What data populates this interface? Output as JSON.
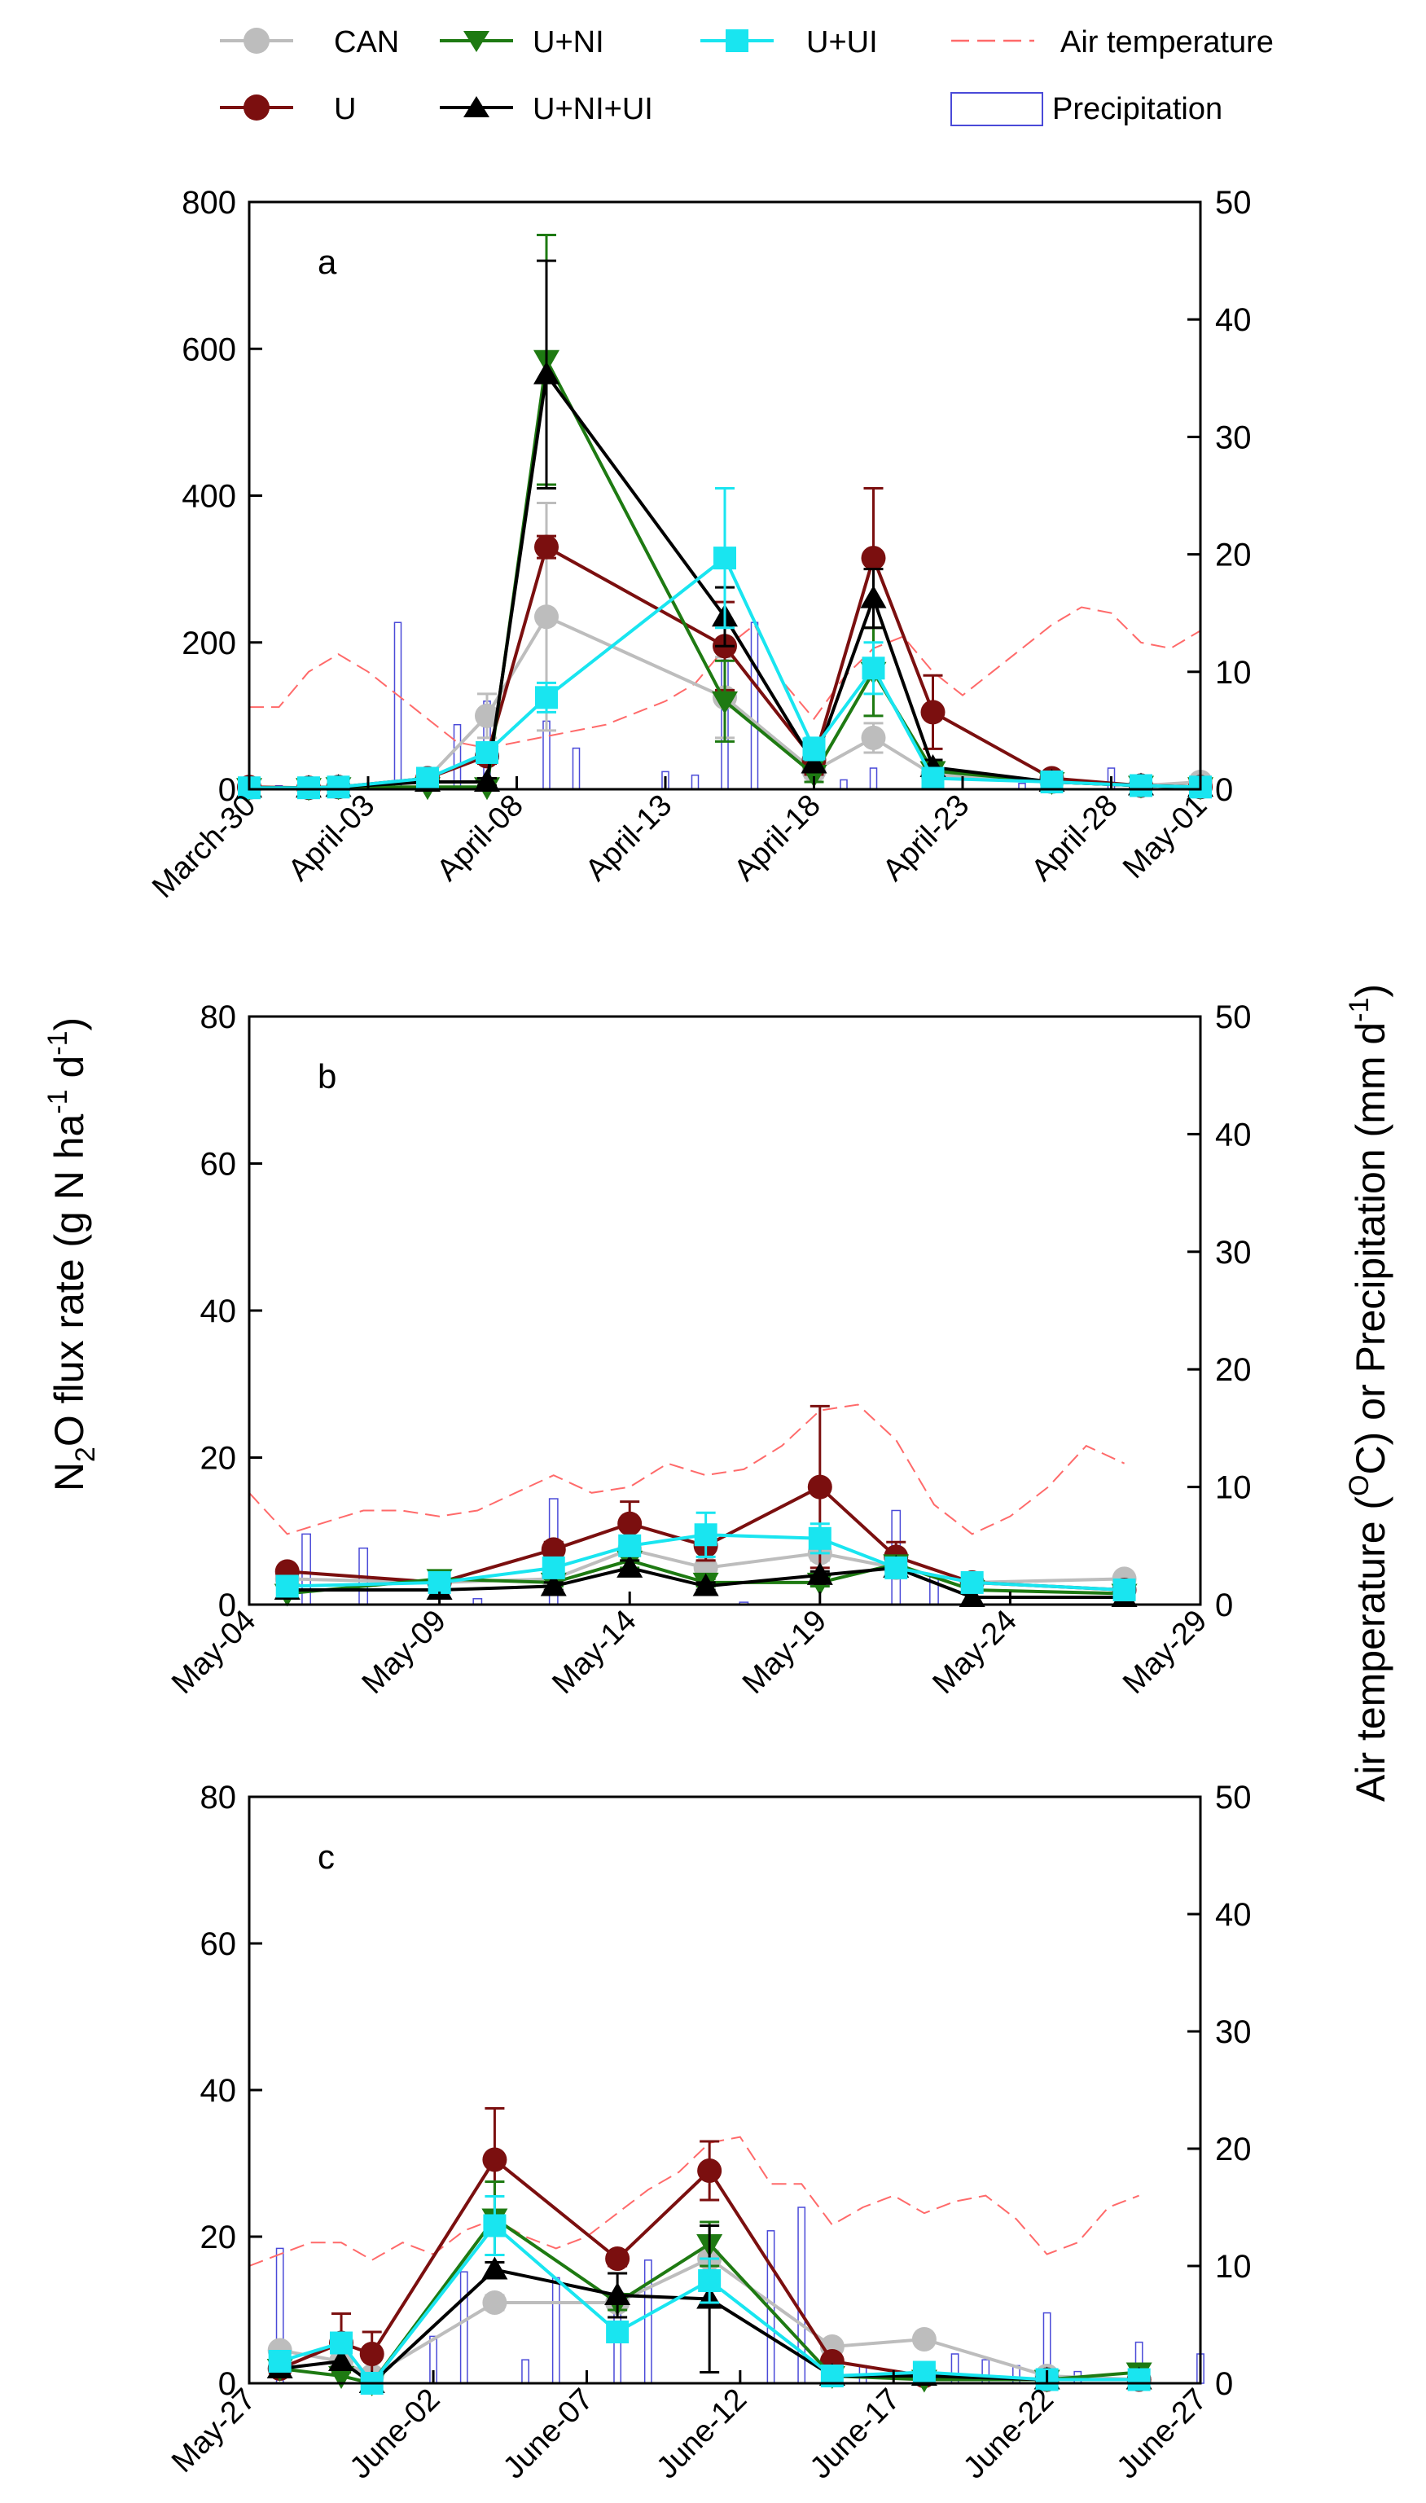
{
  "legend": {
    "entries": [
      {
        "key": "CAN",
        "label": "CAN"
      },
      {
        "key": "U",
        "label": "U"
      },
      {
        "key": "U+NI",
        "label": "U+NI"
      },
      {
        "key": "U+NI+UI",
        "label": "U+NI+UI"
      },
      {
        "key": "U+UI",
        "label": "U+UI"
      },
      {
        "key": "air",
        "label": "Air temperature"
      },
      {
        "key": "precip",
        "label": "Precipitation"
      }
    ]
  },
  "colors": {
    "CAN": "#bdbdbd",
    "U": "#7b0f0f",
    "U+NI": "#1e7a12",
    "U+NI+UI": "#000000",
    "U+UI": "#19e5f0",
    "air": "#ff6a6a",
    "precip": "#4a4ad8"
  },
  "axis_labels": {
    "left_prefix": "N",
    "left_sub": "2",
    "left_mid": "O flux rate (g N ha",
    "left_sup1": "-1",
    "left_mid2": " d",
    "left_sup2": "-1",
    "left_end": ")",
    "right_prefix": "Air temperature (",
    "right_sup": "O",
    "right_mid": "C) or Precipitation (mm d",
    "right_sup2": "-1",
    "right_end": ")"
  },
  "chart_data": [
    {
      "type": "line",
      "panel": "a",
      "title": "",
      "ylim": [
        0,
        800
      ],
      "yticks": [
        "0",
        "200",
        "400",
        "600",
        "800"
      ],
      "y2lim": [
        0,
        50
      ],
      "y2ticks": [
        "0",
        "10",
        "20",
        "30",
        "40",
        "50"
      ],
      "xlim": [
        0,
        32
      ],
      "xticks": [
        {
          "x": 0,
          "label": "March-30"
        },
        {
          "x": 4,
          "label": "April-03"
        },
        {
          "x": 9,
          "label": "April-08"
        },
        {
          "x": 14,
          "label": "April-13"
        },
        {
          "x": 19,
          "label": "April-18"
        },
        {
          "x": 24,
          "label": "April-23"
        },
        {
          "x": 29,
          "label": "April-28"
        },
        {
          "x": 32,
          "label": "May-01"
        }
      ],
      "x": [
        0,
        2,
        3,
        6,
        8,
        10,
        16,
        19,
        21,
        23,
        27,
        30,
        32
      ],
      "series": [
        {
          "name": "CAN",
          "values": [
            2,
            2,
            3,
            15,
            100,
            235,
            125,
            25,
            70,
            20,
            10,
            5,
            10
          ],
          "errors": [
            0,
            0,
            0,
            5,
            30,
            155,
            55,
            10,
            20,
            5,
            0,
            0,
            0
          ]
        },
        {
          "name": "U",
          "values": [
            3,
            2,
            3,
            15,
            45,
            330,
            195,
            40,
            315,
            105,
            15,
            5,
            3
          ],
          "errors": [
            0,
            0,
            0,
            5,
            10,
            15,
            60,
            20,
            95,
            50,
            5,
            0,
            0
          ]
        },
        {
          "name": "U+NI",
          "values": [
            2,
            2,
            3,
            3,
            3,
            585,
            120,
            20,
            160,
            25,
            10,
            5,
            3
          ],
          "errors": [
            0,
            0,
            0,
            0,
            0,
            170,
            55,
            10,
            60,
            10,
            0,
            0,
            0
          ]
        },
        {
          "name": "U+NI+UI",
          "values": [
            2,
            2,
            3,
            10,
            10,
            565,
            235,
            35,
            260,
            30,
            10,
            5,
            3
          ],
          "errors": [
            0,
            0,
            0,
            5,
            5,
            155,
            40,
            10,
            40,
            10,
            0,
            0,
            0
          ]
        },
        {
          "name": "U+UI",
          "values": [
            2,
            2,
            3,
            15,
            50,
            125,
            315,
            55,
            165,
            15,
            10,
            5,
            3
          ],
          "errors": [
            0,
            0,
            0,
            5,
            5,
            20,
            95,
            15,
            35,
            5,
            0,
            0,
            0
          ]
        }
      ],
      "air_temperature": {
        "x": [
          0,
          1,
          2,
          3,
          4,
          5,
          6,
          7,
          8,
          9,
          10,
          11,
          12,
          13,
          14,
          15,
          16,
          17,
          18,
          19,
          20,
          21,
          22,
          23,
          24,
          25,
          26,
          27,
          28,
          29,
          30,
          31,
          32
        ],
        "values": [
          7,
          7,
          10,
          11.5,
          10,
          8,
          6,
          4,
          3.5,
          4,
          4.5,
          5,
          5.5,
          6.5,
          7.5,
          9,
          12,
          14,
          9,
          6,
          9.5,
          12,
          13,
          10,
          8,
          10,
          12,
          14,
          15.5,
          15,
          12.5,
          12,
          13.5
        ]
      },
      "precipitation": {
        "x": [
          1,
          5,
          7,
          8,
          10,
          11,
          14,
          15,
          16,
          17,
          20,
          21,
          23,
          26,
          29
        ],
        "values": [
          0.3,
          14.2,
          5.5,
          7.5,
          5.8,
          3.5,
          1.5,
          1.2,
          11.0,
          14.2,
          0.8,
          1.8,
          0.3,
          0.5,
          1.8
        ]
      }
    },
    {
      "type": "line",
      "panel": "b",
      "title": "",
      "ylim": [
        0,
        80
      ],
      "yticks": [
        "0",
        "20",
        "40",
        "60",
        "80"
      ],
      "y2lim": [
        0,
        50
      ],
      "y2ticks": [
        "0",
        "10",
        "20",
        "30",
        "40",
        "50"
      ],
      "xlim": [
        0,
        25
      ],
      "xticks": [
        {
          "x": 0,
          "label": "May-04"
        },
        {
          "x": 5,
          "label": "May-09"
        },
        {
          "x": 10,
          "label": "May-14"
        },
        {
          "x": 15,
          "label": "May-19"
        },
        {
          "x": 20,
          "label": "May-24"
        },
        {
          "x": 25,
          "label": "May-29"
        }
      ],
      "x": [
        1,
        5,
        8,
        10,
        12,
        15,
        17,
        19,
        23
      ],
      "series": [
        {
          "name": "CAN",
          "values": [
            3.5,
            3,
            3.5,
            7.5,
            5,
            7,
            5,
            3,
            3.5
          ],
          "errors": [
            0,
            0,
            0.5,
            1.5,
            1,
            1,
            0.5,
            0.5,
            0
          ]
        },
        {
          "name": "U",
          "values": [
            4.5,
            3,
            7.5,
            11,
            8,
            16,
            6.5,
            3,
            2
          ],
          "errors": [
            0.5,
            0,
            1,
            3,
            2,
            11,
            2,
            0.5,
            0
          ]
        },
        {
          "name": "U+NI",
          "values": [
            1.5,
            3.5,
            3,
            6,
            3,
            3,
            5.5,
            2,
            1.5
          ],
          "errors": [
            0,
            0,
            0.5,
            1,
            0.5,
            0.5,
            0.5,
            0,
            0
          ]
        },
        {
          "name": "U+NI+UI",
          "values": [
            2,
            2,
            2.5,
            5,
            2.5,
            4,
            5,
            1,
            1
          ],
          "errors": [
            0,
            0,
            0.5,
            1,
            0.5,
            0.5,
            0.5,
            0,
            0
          ]
        },
        {
          "name": "U+UI",
          "values": [
            2.5,
            3,
            5,
            8,
            9.5,
            9,
            5,
            3,
            2
          ],
          "errors": [
            0.5,
            0,
            0.5,
            1,
            3,
            2,
            1,
            0.5,
            0
          ]
        }
      ],
      "air_temperature": {
        "x": [
          0,
          1,
          2,
          3,
          4,
          5,
          6,
          7,
          8,
          9,
          10,
          11,
          12,
          13,
          14,
          15,
          16,
          17,
          18,
          19,
          20,
          21,
          22,
          23
        ],
        "values": [
          9.5,
          6,
          7,
          8,
          8,
          7.5,
          8,
          9.5,
          11,
          9.5,
          10,
          12,
          11,
          11.5,
          13.5,
          16.5,
          17,
          14,
          8.5,
          6,
          7.5,
          10,
          13.5,
          12
        ]
      },
      "precipitation": {
        "x": [
          1.5,
          3,
          6,
          8,
          13,
          17,
          18
        ],
        "values": [
          6,
          4.8,
          0.5,
          9,
          0.2,
          8,
          2.5
        ]
      }
    },
    {
      "type": "line",
      "panel": "c",
      "title": "",
      "ylim": [
        0,
        80
      ],
      "yticks": [
        "0",
        "20",
        "40",
        "60",
        "80"
      ],
      "y2lim": [
        0,
        50
      ],
      "y2ticks": [
        "0",
        "10",
        "20",
        "30",
        "40",
        "50"
      ],
      "xlim": [
        0,
        31
      ],
      "xticks": [
        {
          "x": 0,
          "label": "May-27"
        },
        {
          "x": 6,
          "label": "June-02"
        },
        {
          "x": 11,
          "label": "June-07"
        },
        {
          "x": 16,
          "label": "June-12"
        },
        {
          "x": 21,
          "label": "June-17"
        },
        {
          "x": 26,
          "label": "June-22"
        },
        {
          "x": 31,
          "label": "June-27"
        }
      ],
      "x": [
        1,
        3,
        4,
        8,
        12,
        15,
        19,
        22,
        26,
        29
      ],
      "series": [
        {
          "name": "CAN",
          "values": [
            4.5,
            3,
            1,
            11,
            11,
            17,
            5,
            6,
            1,
            0.5
          ],
          "errors": [
            0.5,
            0,
            0,
            1,
            1,
            1,
            0.5,
            0.5,
            0,
            0
          ]
        },
        {
          "name": "U",
          "values": [
            2,
            5.5,
            4,
            30.5,
            17,
            29,
            3,
            1,
            0.5,
            0.5
          ],
          "errors": [
            0,
            4,
            3,
            7,
            1,
            4,
            0.5,
            0,
            0,
            0
          ]
        },
        {
          "name": "U+NI",
          "values": [
            2,
            1,
            0,
            22.5,
            11,
            19,
            1,
            0.5,
            0.5,
            1.5
          ],
          "errors": [
            0,
            0,
            0,
            5,
            1,
            3,
            0,
            0,
            0,
            0
          ]
        },
        {
          "name": "U+NI+UI",
          "values": [
            2,
            3,
            0,
            15.5,
            12,
            11.5,
            1,
            1,
            0.5,
            0.5
          ],
          "errors": [
            0,
            0,
            0,
            1,
            3,
            10,
            0,
            0,
            0,
            0
          ]
        },
        {
          "name": "U+UI",
          "values": [
            3,
            5.5,
            0,
            21.5,
            7,
            14,
            1,
            1.5,
            0.5,
            0.5
          ],
          "errors": [
            0.5,
            0.5,
            0,
            4,
            1,
            3,
            0,
            0,
            0,
            0
          ]
        }
      ],
      "air_temperature": {
        "x": [
          0,
          1,
          2,
          3,
          4,
          5,
          6,
          7,
          8,
          9,
          10,
          11,
          12,
          13,
          14,
          15,
          16,
          17,
          18,
          19,
          20,
          21,
          22,
          23,
          24,
          25,
          26,
          27,
          28,
          29
        ],
        "values": [
          10,
          11,
          12,
          12,
          10.5,
          12,
          11,
          13,
          14,
          12.5,
          11.5,
          12.5,
          14.5,
          16.5,
          18,
          20.5,
          21,
          17,
          17,
          13.5,
          15,
          16,
          14.5,
          15.5,
          16,
          14,
          11,
          12,
          15,
          16
        ]
      },
      "precipitation": {
        "x": [
          1,
          3,
          6,
          7,
          9,
          10,
          12,
          13,
          17,
          18,
          20,
          23,
          24,
          25,
          26,
          27,
          29,
          31
        ],
        "values": [
          11.5,
          2.5,
          4,
          9.5,
          2,
          9,
          6,
          10.5,
          13,
          15,
          1.5,
          2.5,
          2,
          1.5,
          6,
          1,
          3.5,
          2.5
        ]
      }
    }
  ]
}
